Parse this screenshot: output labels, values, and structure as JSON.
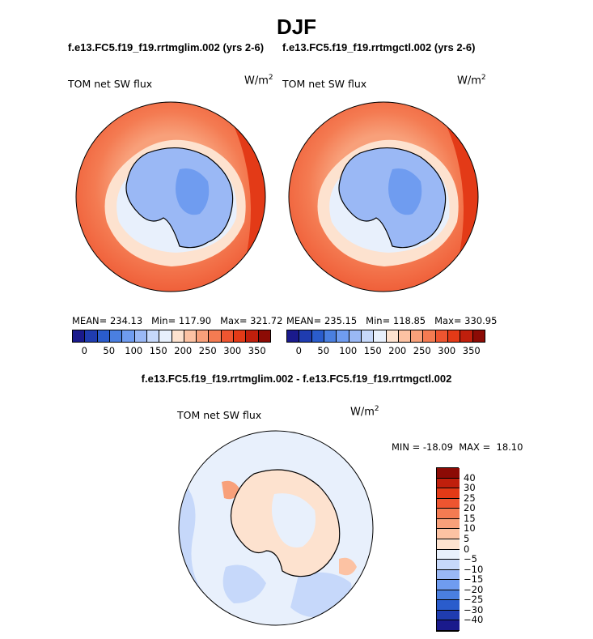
{
  "title": "DJF",
  "panels": [
    {
      "name": "left",
      "title": "f.e13.FC5.f19_f19.rrtmglim.002 (yrs 2-6)",
      "variable": "TOM net SW flux",
      "units_base": "W/m",
      "units_exp": "2",
      "mean_label": "MEAN=",
      "mean": "234.13",
      "min_label": "Min=",
      "min": "117.90",
      "max_label": "Max=",
      "max": "321.72"
    },
    {
      "name": "right",
      "title": "f.e13.FC5.f19_f19.rrtmgctl.002 (yrs 2-6)",
      "variable": "TOM net SW flux",
      "units_base": "W/m",
      "units_exp": "2",
      "mean_label": "MEAN=",
      "mean": "235.15",
      "min_label": "Min=",
      "min": "118.85",
      "max_label": "Max=",
      "max": "330.95"
    }
  ],
  "colorbar_horizontal": {
    "colors": [
      "#1a1a8c",
      "#1f3cb0",
      "#2a5ccc",
      "#4a7fe0",
      "#6f9cf0",
      "#9ab8f5",
      "#c6d8fa",
      "#e8f0fc",
      "#fde2cf",
      "#fcc2a3",
      "#f8a07a",
      "#f47b52",
      "#ee5530",
      "#e33a17",
      "#c01f0c",
      "#8c0b05"
    ],
    "ticks": [
      "0",
      "50",
      "100",
      "150",
      "200",
      "250",
      "300",
      "350"
    ]
  },
  "difference": {
    "title": "f.e13.FC5.f19_f19.rrtmglim.002 - f.e13.FC5.f19_f19.rrtmgctl.002",
    "variable": "TOM net SW flux",
    "units_base": "W/m",
    "units_exp": "2",
    "stats": "MIN = -18.09  MAX =  18.10",
    "colorbar": {
      "colors": [
        "#8c0b05",
        "#c01f0c",
        "#e33a17",
        "#ee5530",
        "#f47b52",
        "#f8a07a",
        "#fcc2a3",
        "#fde2cf",
        "#e8f0fc",
        "#c6d8fa",
        "#9ab8f5",
        "#6f9cf0",
        "#4a7fe0",
        "#2a5ccc",
        "#1f3cb0",
        "#1a1a8c"
      ],
      "ticks": [
        "40",
        "30",
        "25",
        "20",
        "15",
        "10",
        "5",
        "0",
        "−5",
        "−10",
        "−15",
        "−20",
        "−25",
        "−30",
        "−40"
      ]
    }
  }
}
